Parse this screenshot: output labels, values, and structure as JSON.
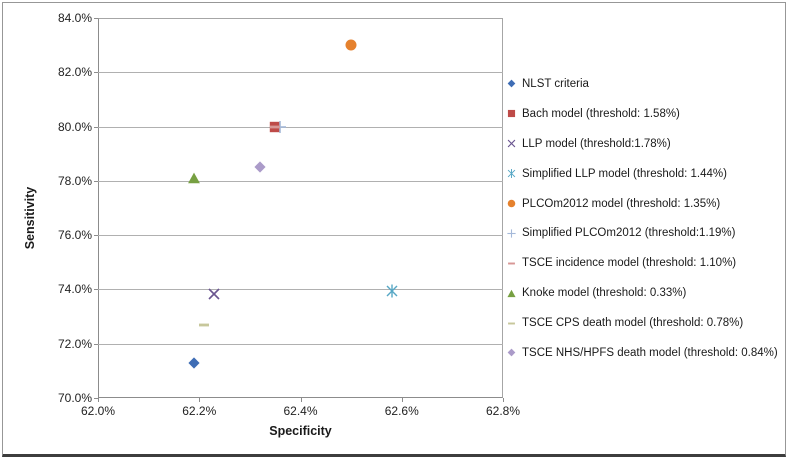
{
  "chart_data": {
    "type": "scatter",
    "title": "",
    "xlabel": "Specificity",
    "ylabel": "Sensitivity",
    "xlim": [
      62.0,
      62.8
    ],
    "ylim": [
      70.0,
      84.0
    ],
    "x_ticks": [
      "62.0%",
      "62.2%",
      "62.4%",
      "62.6%",
      "62.8%"
    ],
    "y_ticks": [
      "70.0%",
      "72.0%",
      "74.0%",
      "76.0%",
      "78.0%",
      "80.0%",
      "82.0%",
      "84.0%"
    ],
    "grid": "horizontal",
    "legend_position": "right",
    "series": [
      {
        "name": "NLST criteria",
        "marker": "diamond",
        "color": "#3e6db5",
        "points": [
          [
            62.19,
            71.3
          ]
        ]
      },
      {
        "name": "Bach model (threshold: 1.58%)",
        "marker": "square",
        "color": "#be4b48",
        "points": [
          [
            62.35,
            79.98
          ]
        ]
      },
      {
        "name": "LLP model (threshold:1.78%)",
        "marker": "x",
        "color": "#6a5590",
        "points": [
          [
            62.23,
            73.85
          ]
        ]
      },
      {
        "name": "Simplified LLP model (threshold: 1.44%)",
        "marker": "x-line",
        "color": "#57a7c5",
        "points": [
          [
            62.58,
            73.95
          ]
        ]
      },
      {
        "name": "PLCOm2012 model (threshold: 1.35%)",
        "marker": "circle",
        "color": "#e5812d",
        "points": [
          [
            62.5,
            83.0
          ]
        ]
      },
      {
        "name": "Simplified PLCOm2012 (threshold:1.19%)",
        "marker": "plus",
        "color": "#a5b9d9",
        "points": [
          [
            62.36,
            79.98
          ]
        ]
      },
      {
        "name": "TSCE incidence model (threshold: 1.10%)",
        "marker": "dash",
        "color": "#d89795",
        "points": [
          [
            62.35,
            80.0
          ]
        ]
      },
      {
        "name": "Knoke model (threshold: 0.33%)",
        "marker": "triangle",
        "color": "#77a042",
        "points": [
          [
            62.19,
            78.1
          ]
        ]
      },
      {
        "name": "TSCE CPS death model (threshold: 0.78%)",
        "marker": "dash",
        "color": "#c7c79b",
        "points": [
          [
            62.21,
            72.7
          ]
        ]
      },
      {
        "name": "TSCE NHS/HPFS death model (threshold: 0.84%)",
        "marker": "diamond",
        "color": "#ab9bc9",
        "points": [
          [
            62.32,
            78.5
          ]
        ]
      }
    ]
  }
}
